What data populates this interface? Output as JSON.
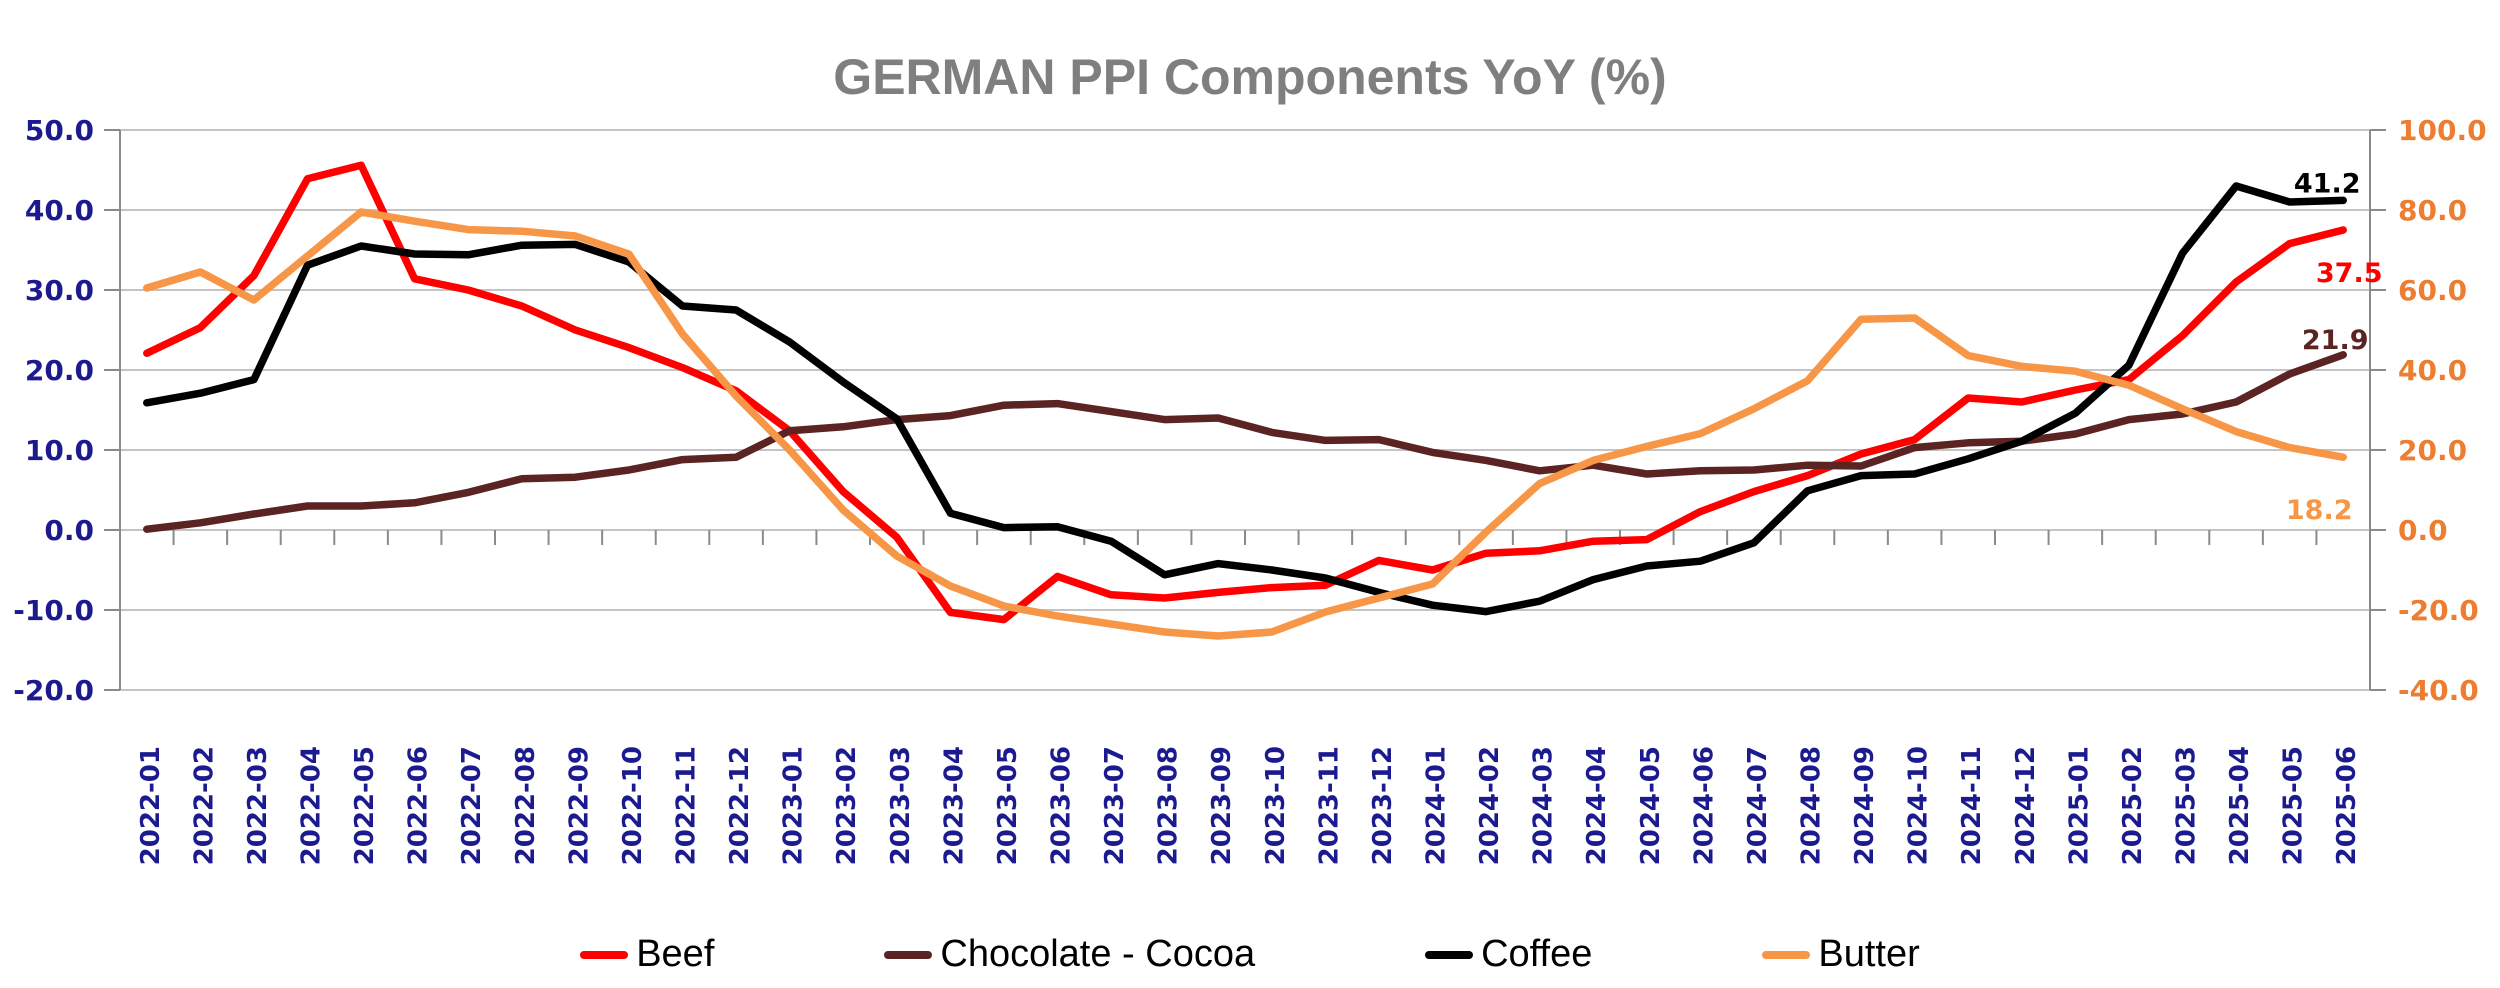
{
  "title": "GERMAN PPI Components YoY (%)",
  "title_color": "#7F7F7F",
  "chart_data": {
    "type": "line",
    "title": "GERMAN PPI Components YoY (%)",
    "grid_color": "#C4C4C4",
    "axis_color": "#8A8A8A",
    "legend_position": "bottom",
    "x_labels": [
      "2022-01",
      "2022-02",
      "2022-03",
      "2022-04",
      "2022-05",
      "2022-06",
      "2022-07",
      "2022-08",
      "2022-09",
      "2022-10",
      "2022-11",
      "2022-12",
      "2023-01",
      "2023-02",
      "2023-03",
      "2023-04",
      "2023-05",
      "2023-06",
      "2023-07",
      "2023-08",
      "2023-09",
      "2023-10",
      "2023-11",
      "2023-12",
      "2024-01",
      "2024-02",
      "2024-03",
      "2024-04",
      "2024-05",
      "2024-06",
      "2024-07",
      "2024-08",
      "2024-09",
      "2024-10",
      "2024-11",
      "2024-12",
      "2025-01",
      "2025-02",
      "2025-03",
      "2025-04",
      "2025-05",
      "2025-06"
    ],
    "x_label_color": "#1B1B8F",
    "left_axis": {
      "min": -20,
      "max": 50,
      "step": 10,
      "ticks": [
        "50.0",
        "40.0",
        "30.0",
        "20.0",
        "10.0",
        "0.0",
        "-10.0",
        "-20.0"
      ],
      "color": "#1B1B8F"
    },
    "right_axis": {
      "min": -40,
      "max": 100,
      "step": 20,
      "ticks": [
        "100.0",
        "80.0",
        "60.0",
        "40.0",
        "20.0",
        "0.0",
        "-20.0",
        "-40.0"
      ],
      "color": "#ED7D31"
    },
    "series": [
      {
        "name": "Beef",
        "axis": "left",
        "color": "#FF0000",
        "end_label": "37.5",
        "end_label_dx": 6,
        "end_label_dy": 52,
        "values": [
          22.1,
          25.3,
          31.8,
          43.9,
          45.6,
          31.4,
          30.0,
          28.0,
          25.0,
          22.8,
          20.3,
          17.4,
          12.4,
          4.8,
          -0.9,
          -10.3,
          -11.2,
          -5.8,
          -8.1,
          -8.5,
          -7.8,
          -7.2,
          -6.9,
          -3.8,
          -5.0,
          -2.9,
          -2.6,
          -1.4,
          -1.2,
          2.3,
          4.8,
          6.8,
          9.5,
          11.3,
          16.5,
          16.0,
          17.5,
          18.8,
          24.3,
          31.0,
          35.8,
          37.5
        ]
      },
      {
        "name": "Chocolate - Cocoa",
        "axis": "left",
        "color": "#5B2423",
        "end_label": "21.9",
        "end_label_dx": -8,
        "end_label_dy": -6,
        "values": [
          0.1,
          0.9,
          2.0,
          3.0,
          3.0,
          3.4,
          4.7,
          6.4,
          6.6,
          7.5,
          8.8,
          9.1,
          12.4,
          12.9,
          13.8,
          14.3,
          15.6,
          15.8,
          14.8,
          13.8,
          14.0,
          12.2,
          11.2,
          11.3,
          9.7,
          8.7,
          7.4,
          8.1,
          7.0,
          7.4,
          7.5,
          8.1,
          8.0,
          10.3,
          10.9,
          11.1,
          12.0,
          13.8,
          14.5,
          16.0,
          19.5,
          21.9
        ]
      },
      {
        "name": "Coffee",
        "axis": "left",
        "color": "#000000",
        "end_label": "41.2",
        "end_label_dx": -16,
        "end_label_dy": -8,
        "values": [
          15.9,
          17.1,
          18.8,
          33.1,
          35.5,
          34.5,
          34.4,
          35.6,
          35.7,
          33.5,
          28.0,
          27.5,
          23.5,
          18.5,
          13.9,
          2.1,
          0.3,
          0.4,
          -1.4,
          -5.6,
          -4.2,
          -5.0,
          -6.0,
          -7.8,
          -9.4,
          -10.2,
          -8.9,
          -6.2,
          -4.5,
          -3.9,
          -1.6,
          4.9,
          6.8,
          7.0,
          8.9,
          11.1,
          14.6,
          20.6,
          34.6,
          43.0,
          41.0,
          41.2
        ]
      },
      {
        "name": "Butter",
        "axis": "right",
        "color": "#F79646",
        "end_label": "18.2",
        "end_label_dx": -24,
        "end_label_dy": 62,
        "values": [
          60.5,
          64.5,
          57.5,
          68.5,
          79.5,
          77.2,
          75.1,
          74.7,
          73.5,
          69.0,
          49.0,
          33.5,
          20.0,
          5.0,
          -6.5,
          -14.0,
          -19.0,
          -21.5,
          -23.5,
          -25.5,
          -26.5,
          -25.5,
          -20.5,
          -17.0,
          -13.5,
          -0.5,
          11.6,
          17.4,
          20.9,
          24.1,
          30.3,
          37.3,
          52.7,
          53.0,
          43.6,
          40.9,
          39.7,
          36.2,
          30.3,
          24.6,
          20.6,
          18.2
        ]
      }
    ]
  }
}
